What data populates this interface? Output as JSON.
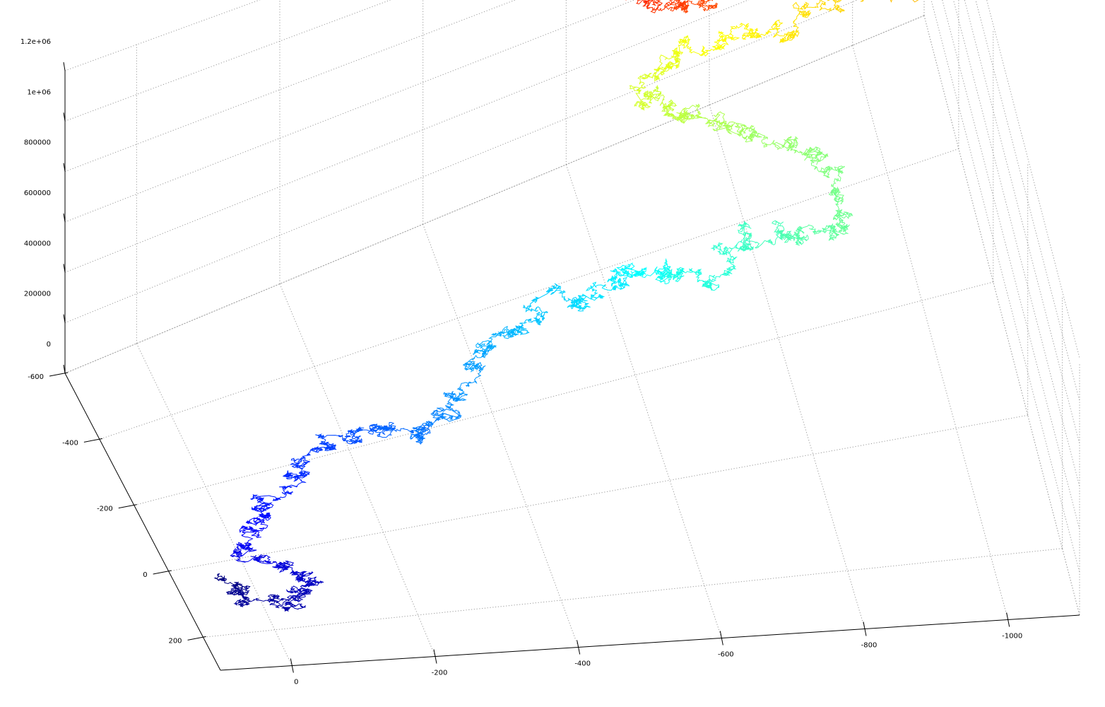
{
  "chart_data": {
    "type": "line",
    "title": "",
    "xlabel": "",
    "ylabel": "",
    "zlabel": "",
    "projection": "3d",
    "colormap": "jet (dark blue to dark red along the path)",
    "grid": true,
    "x_axis": {
      "range": [
        -1100,
        100
      ],
      "ticks": [
        0,
        -200,
        -400,
        -600,
        -800,
        -1000
      ],
      "tick_labels": [
        "0",
        "-200",
        "-400",
        "-600",
        "-800",
        "-1000"
      ]
    },
    "y_axis": {
      "range": [
        -600,
        300
      ],
      "ticks": [
        -600,
        -400,
        -200,
        0,
        200
      ],
      "tick_labels": [
        "-600",
        "-400",
        "-200",
        "0",
        "200"
      ]
    },
    "z_axis": {
      "range": [
        0,
        1200000
      ],
      "ticks": [
        0,
        200000,
        400000,
        600000,
        800000,
        1000000,
        1200000
      ],
      "tick_labels": [
        "0",
        "200000",
        "400000",
        "600000",
        "800000",
        "1e+06",
        "1.2e+06"
      ]
    },
    "series": [
      {
        "description_points": "approximate centre-line of the random walk, (x, y, z) in data units",
        "points": [
          [
            30,
            40,
            0
          ],
          [
            20,
            110,
            10000
          ],
          [
            -30,
            160,
            20000
          ],
          [
            -80,
            120,
            30000
          ],
          [
            -40,
            60,
            40000
          ],
          [
            -10,
            20,
            60000
          ],
          [
            -20,
            -40,
            80000
          ],
          [
            -60,
            -80,
            100000
          ],
          [
            -120,
            -120,
            120000
          ],
          [
            -170,
            -160,
            140000
          ],
          [
            -230,
            -140,
            170000
          ],
          [
            -270,
            -90,
            200000
          ],
          [
            -320,
            -120,
            230000
          ],
          [
            -370,
            -180,
            250000
          ],
          [
            -430,
            -210,
            280000
          ],
          [
            -490,
            -260,
            300000
          ],
          [
            -540,
            -220,
            330000
          ],
          [
            -600,
            -250,
            350000
          ],
          [
            -650,
            -210,
            370000
          ],
          [
            -700,
            -180,
            390000
          ],
          [
            -760,
            -230,
            410000
          ],
          [
            -820,
            -200,
            440000
          ],
          [
            -880,
            -180,
            470000
          ],
          [
            -900,
            -260,
            500000
          ],
          [
            -840,
            -320,
            530000
          ],
          [
            -770,
            -360,
            560000
          ],
          [
            -700,
            -400,
            580000
          ],
          [
            -660,
            -450,
            600000
          ],
          [
            -720,
            -480,
            620000
          ],
          [
            -800,
            -470,
            640000
          ],
          [
            -880,
            -440,
            660000
          ],
          [
            -960,
            -460,
            690000
          ],
          [
            -1040,
            -430,
            720000
          ],
          [
            -980,
            -520,
            740000
          ],
          [
            -900,
            -560,
            770000
          ],
          [
            -830,
            -580,
            800000
          ],
          [
            -790,
            -520,
            820000
          ],
          [
            -760,
            -470,
            840000
          ],
          [
            -700,
            -480,
            860000
          ],
          [
            -660,
            -520,
            890000
          ],
          [
            -640,
            -560,
            920000
          ],
          [
            -690,
            -600,
            950000
          ],
          [
            -760,
            -620,
            980000
          ],
          [
            -840,
            -650,
            1000000
          ],
          [
            -920,
            -640,
            1030000
          ],
          [
            -980,
            -610,
            1060000
          ],
          [
            -1040,
            -620,
            1080000
          ]
        ]
      }
    ]
  }
}
